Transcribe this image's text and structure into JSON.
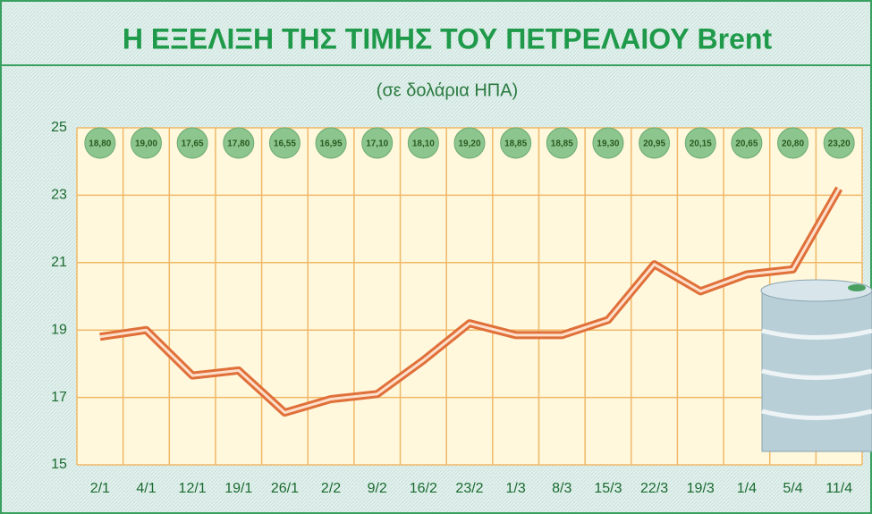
{
  "chart_data": {
    "type": "line",
    "title": "Η ΕΞΕΛΙΞΗ ΤΗΣ ΤΙΜΗΣ ΤΟΥ ΠΕΤΡΕΛΑΙΟΥ Brent",
    "subtitle": "(σε δολάρια ΗΠΑ)",
    "categories": [
      "2/1",
      "4/1",
      "12/1",
      "19/1",
      "26/1",
      "2/2",
      "9/2",
      "16/2",
      "23/2",
      "1/3",
      "8/3",
      "15/3",
      "22/3",
      "19/3",
      "1/4",
      "5/4",
      "11/4"
    ],
    "values": [
      18.8,
      19.0,
      17.65,
      17.8,
      16.55,
      16.95,
      17.1,
      18.1,
      19.2,
      18.85,
      18.85,
      19.3,
      20.95,
      20.15,
      20.65,
      20.8,
      23.2
    ],
    "value_labels": [
      "18,80",
      "19,00",
      "17,65",
      "17,80",
      "16,55",
      "16,95",
      "17,10",
      "18,10",
      "19,20",
      "18,85",
      "18,85",
      "19,30",
      "20,95",
      "20,15",
      "20,65",
      "20,80",
      "23,20"
    ],
    "color": "#e0703a",
    "ylim": [
      15,
      25
    ],
    "yticks": [
      15,
      17,
      19,
      21,
      23,
      25
    ],
    "grid": true
  }
}
